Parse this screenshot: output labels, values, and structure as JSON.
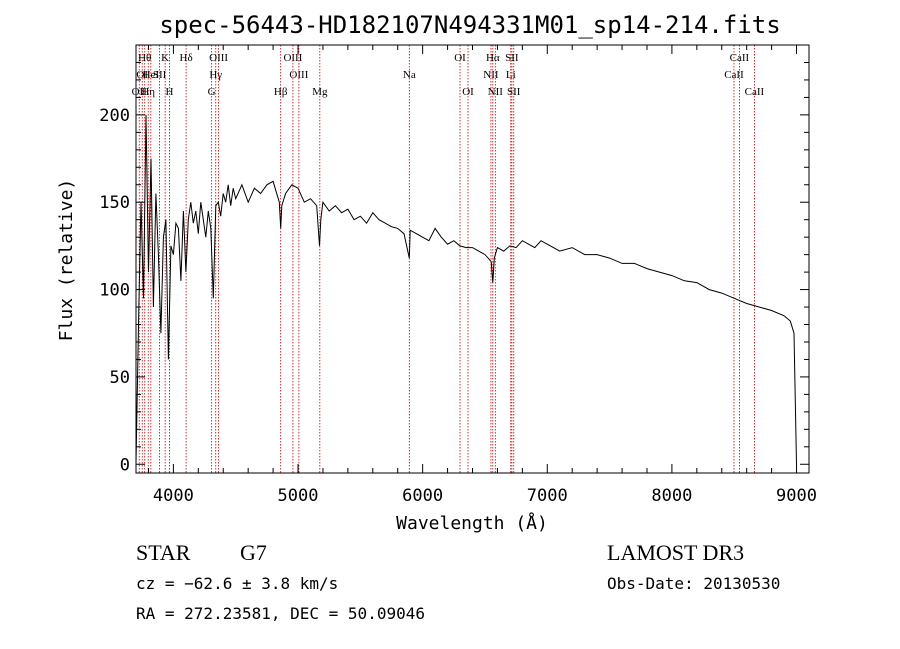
{
  "chart_data": {
    "type": "line",
    "title": "spec-56443-HD182107N494331M01_sp14-214.fits",
    "xlabel": "Wavelength (Å)",
    "ylabel": "Flux (relative)",
    "xlim": [
      3700,
      9100
    ],
    "ylim": [
      -5,
      240
    ],
    "xticks": [
      4000,
      5000,
      6000,
      7000,
      8000,
      9000
    ],
    "yticks": [
      0,
      50,
      100,
      150,
      200
    ],
    "grid": false,
    "series": [
      {
        "name": "flux",
        "x": [
          3700,
          3720,
          3740,
          3760,
          3780,
          3800,
          3820,
          3840,
          3860,
          3880,
          3900,
          3920,
          3940,
          3960,
          3980,
          4000,
          4020,
          4040,
          4060,
          4080,
          4100,
          4120,
          4140,
          4160,
          4180,
          4200,
          4220,
          4240,
          4260,
          4280,
          4300,
          4320,
          4340,
          4360,
          4380,
          4400,
          4420,
          4440,
          4460,
          4480,
          4500,
          4550,
          4600,
          4650,
          4700,
          4750,
          4800,
          4850,
          4861,
          4870,
          4900,
          4950,
          5000,
          5050,
          5100,
          5150,
          5172,
          5183,
          5200,
          5250,
          5300,
          5350,
          5400,
          5450,
          5500,
          5550,
          5600,
          5650,
          5700,
          5750,
          5800,
          5850,
          5893,
          5900,
          5950,
          6000,
          6050,
          6100,
          6150,
          6200,
          6250,
          6300,
          6350,
          6400,
          6450,
          6500,
          6550,
          6563,
          6575,
          6600,
          6650,
          6700,
          6750,
          6800,
          6850,
          6900,
          6950,
          7000,
          7100,
          7200,
          7300,
          7400,
          7500,
          7600,
          7700,
          7800,
          7900,
          8000,
          8100,
          8200,
          8300,
          8400,
          8500,
          8600,
          8700,
          8800,
          8900,
          8950,
          8980,
          9000
        ],
        "y": [
          0,
          80,
          150,
          95,
          200,
          110,
          175,
          90,
          155,
          120,
          75,
          130,
          140,
          60,
          125,
          120,
          138,
          135,
          105,
          145,
          110,
          140,
          150,
          138,
          145,
          132,
          150,
          140,
          130,
          145,
          135,
          95,
          148,
          150,
          142,
          155,
          150,
          160,
          148,
          158,
          152,
          160,
          150,
          158,
          155,
          160,
          162,
          150,
          135,
          148,
          155,
          160,
          158,
          150,
          152,
          148,
          125,
          140,
          150,
          145,
          148,
          144,
          146,
          140,
          142,
          138,
          144,
          140,
          138,
          136,
          135,
          132,
          118,
          134,
          132,
          130,
          128,
          135,
          130,
          126,
          128,
          125,
          124,
          124,
          122,
          120,
          116,
          104,
          118,
          124,
          122,
          125,
          124,
          128,
          126,
          124,
          128,
          126,
          122,
          124,
          120,
          120,
          118,
          115,
          115,
          112,
          110,
          108,
          105,
          104,
          100,
          98,
          95,
          92,
          90,
          88,
          85,
          82,
          75,
          0
        ]
      }
    ],
    "annotations": {
      "line_labels": [
        {
          "x": 3726,
          "label": "OII",
          "row": 3
        },
        {
          "x": 3750,
          "label": "OI",
          "row": 2
        },
        {
          "x": 3770,
          "label": "Hθ",
          "row": 1
        },
        {
          "x": 3798,
          "label": "Hη",
          "row": 3
        },
        {
          "x": 3819,
          "label": "HeI",
          "row": 2
        },
        {
          "x": 3889,
          "label": "SII",
          "row": 2
        },
        {
          "x": 3934,
          "label": "K",
          "row": 1
        },
        {
          "x": 3969,
          "label": "H",
          "row": 3
        },
        {
          "x": 4102,
          "label": "Hδ",
          "row": 1
        },
        {
          "x": 4340,
          "label": "Hγ",
          "row": 2
        },
        {
          "x": 4363,
          "label": "OIII",
          "row": 1
        },
        {
          "x": 4307,
          "label": "G",
          "row": 3
        },
        {
          "x": 4861,
          "label": "Hβ",
          "row": 3
        },
        {
          "x": 4959,
          "label": "OIII",
          "row": 1
        },
        {
          "x": 5007,
          "label": "OIII",
          "row": 2
        },
        {
          "x": 5175,
          "label": "Mg",
          "row": 3
        },
        {
          "x": 5893,
          "label": "Na",
          "row": 2
        },
        {
          "x": 6300,
          "label": "OI",
          "row": 1
        },
        {
          "x": 6364,
          "label": "OI",
          "row": 3
        },
        {
          "x": 6563,
          "label": "Hα",
          "row": 1
        },
        {
          "x": 6548,
          "label": "NII",
          "row": 2
        },
        {
          "x": 6583,
          "label": "NII",
          "row": 3
        },
        {
          "x": 6716,
          "label": "SII",
          "row": 1
        },
        {
          "x": 6707,
          "label": "Li",
          "row": 2
        },
        {
          "x": 6731,
          "label": "SII",
          "row": 3
        },
        {
          "x": 8498,
          "label": "CaII",
          "row": 2
        },
        {
          "x": 8542,
          "label": "CaII",
          "row": 1
        },
        {
          "x": 8662,
          "label": "CaII",
          "row": 3
        }
      ]
    }
  },
  "info": {
    "class": "STAR",
    "subclass": "G7",
    "survey": "LAMOST DR3",
    "cz": "cz = −62.6 ± 3.8 km/s",
    "obs_date": "Obs-Date: 20130530",
    "radec": "RA = 272.23581, DEC =  50.09046"
  },
  "colors": {
    "line": "#000000",
    "marker": "#c00000"
  }
}
